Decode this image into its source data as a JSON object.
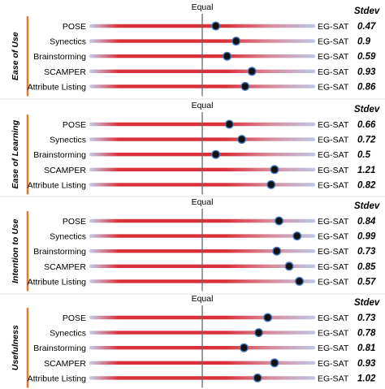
{
  "chart_data": {
    "type": "scatter",
    "scale_min_label": "",
    "scale_max_label": "EG-SAT",
    "center_label": "Equal",
    "stdev_header": "Stdev",
    "x_range": [
      -1,
      1
    ],
    "colors": {
      "accent": "#e8782a",
      "bar_red": "#d9303a",
      "bar_blue": "#bcc7e6",
      "marker": "#111111",
      "marker_ring": "#4a78c0"
    },
    "panels": [
      {
        "name": "Ease of Use",
        "rows": [
          {
            "label": "POSE",
            "value": 0.12,
            "stdev": "0.47"
          },
          {
            "label": "Synectics",
            "value": 0.3,
            "stdev": "0.9"
          },
          {
            "label": "Brainstorming",
            "value": 0.22,
            "stdev": "0.59"
          },
          {
            "label": "SCAMPER",
            "value": 0.44,
            "stdev": "0.93"
          },
          {
            "label": "Attribute Listing",
            "value": 0.38,
            "stdev": "0.86"
          }
        ]
      },
      {
        "name": "Ease of Learning",
        "rows": [
          {
            "label": "POSE",
            "value": 0.24,
            "stdev": "0.66"
          },
          {
            "label": "Synectics",
            "value": 0.35,
            "stdev": "0.72"
          },
          {
            "label": "Brainstorming",
            "value": 0.12,
            "stdev": "0.5"
          },
          {
            "label": "SCAMPER",
            "value": 0.64,
            "stdev": "1.21"
          },
          {
            "label": "Attribute Listing",
            "value": 0.61,
            "stdev": "0.82"
          }
        ]
      },
      {
        "name": "Intention to Use",
        "rows": [
          {
            "label": "POSE",
            "value": 0.68,
            "stdev": "0.84"
          },
          {
            "label": "Synectics",
            "value": 0.84,
            "stdev": "0.99"
          },
          {
            "label": "Brainstorming",
            "value": 0.66,
            "stdev": "0.73"
          },
          {
            "label": "SCAMPER",
            "value": 0.77,
            "stdev": "0.85"
          },
          {
            "label": "Attribute Listing",
            "value": 0.86,
            "stdev": "0.57"
          }
        ]
      },
      {
        "name": "Usefulness",
        "rows": [
          {
            "label": "POSE",
            "value": 0.58,
            "stdev": "0.73"
          },
          {
            "label": "Synectics",
            "value": 0.5,
            "stdev": "0.78"
          },
          {
            "label": "Brainstorming",
            "value": 0.37,
            "stdev": "0.81"
          },
          {
            "label": "SCAMPER",
            "value": 0.64,
            "stdev": "0.93"
          },
          {
            "label": "Attribute Listing",
            "value": 0.49,
            "stdev": "1.02"
          }
        ]
      }
    ]
  }
}
